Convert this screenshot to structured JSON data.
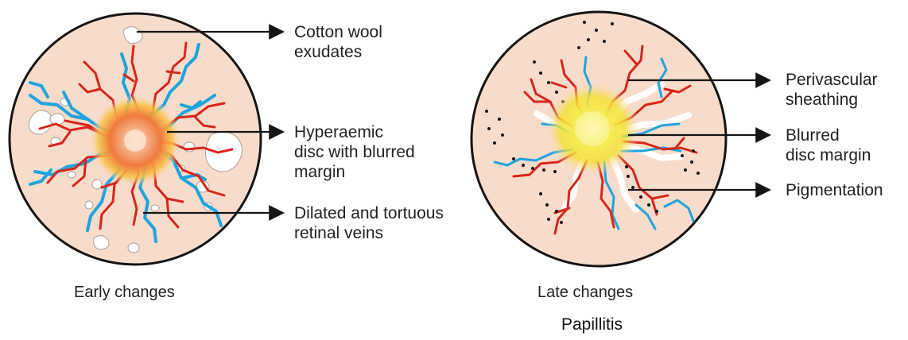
{
  "title": "Papillitis",
  "panels": [
    {
      "caption": "Early changes",
      "labels": [
        [
          "Cotton wool",
          "exudates"
        ],
        [
          "Hyperaemic",
          "disc with blurred",
          "margin"
        ],
        [
          "Dilated and  tortuous",
          "retinal veins"
        ]
      ]
    },
    {
      "caption": "Late changes",
      "labels": [
        [
          "Perivascular",
          "sheathing"
        ],
        [
          "Blurred",
          "disc margin"
        ],
        [
          "Pigmentation"
        ]
      ]
    }
  ],
  "colors": {
    "fundus": "#f8dccb",
    "outline": "#151515",
    "artery": "#d8261c",
    "vein": "#1fa3dc",
    "early_disc": "#f08a4a",
    "late_disc": "#f4e83a"
  }
}
